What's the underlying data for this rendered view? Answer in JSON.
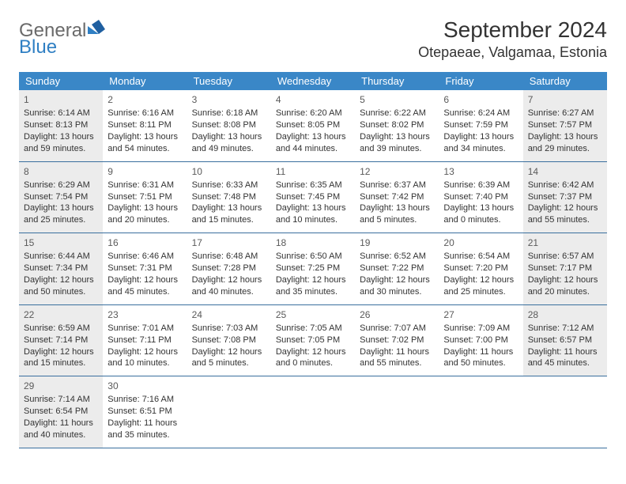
{
  "header": {
    "logo_general": "General",
    "logo_blue": "Blue",
    "title": "September 2024",
    "location": "Otepaeae, Valgamaa, Estonia"
  },
  "colors": {
    "header_bg": "#3a87c7",
    "week_border": "#3a6f9e",
    "shaded_bg": "#ececec",
    "text": "#333333",
    "logo_blue": "#2f7fc3"
  },
  "day_names": [
    "Sunday",
    "Monday",
    "Tuesday",
    "Wednesday",
    "Thursday",
    "Friday",
    "Saturday"
  ],
  "weeks": [
    [
      {
        "n": "1",
        "shaded": true,
        "sunrise": "6:14 AM",
        "sunset": "8:13 PM",
        "daylight": "13 hours and 59 minutes."
      },
      {
        "n": "2",
        "shaded": false,
        "sunrise": "6:16 AM",
        "sunset": "8:11 PM",
        "daylight": "13 hours and 54 minutes."
      },
      {
        "n": "3",
        "shaded": false,
        "sunrise": "6:18 AM",
        "sunset": "8:08 PM",
        "daylight": "13 hours and 49 minutes."
      },
      {
        "n": "4",
        "shaded": false,
        "sunrise": "6:20 AM",
        "sunset": "8:05 PM",
        "daylight": "13 hours and 44 minutes."
      },
      {
        "n": "5",
        "shaded": false,
        "sunrise": "6:22 AM",
        "sunset": "8:02 PM",
        "daylight": "13 hours and 39 minutes."
      },
      {
        "n": "6",
        "shaded": false,
        "sunrise": "6:24 AM",
        "sunset": "7:59 PM",
        "daylight": "13 hours and 34 minutes."
      },
      {
        "n": "7",
        "shaded": true,
        "sunrise": "6:27 AM",
        "sunset": "7:57 PM",
        "daylight": "13 hours and 29 minutes."
      }
    ],
    [
      {
        "n": "8",
        "shaded": true,
        "sunrise": "6:29 AM",
        "sunset": "7:54 PM",
        "daylight": "13 hours and 25 minutes."
      },
      {
        "n": "9",
        "shaded": false,
        "sunrise": "6:31 AM",
        "sunset": "7:51 PM",
        "daylight": "13 hours and 20 minutes."
      },
      {
        "n": "10",
        "shaded": false,
        "sunrise": "6:33 AM",
        "sunset": "7:48 PM",
        "daylight": "13 hours and 15 minutes."
      },
      {
        "n": "11",
        "shaded": false,
        "sunrise": "6:35 AM",
        "sunset": "7:45 PM",
        "daylight": "13 hours and 10 minutes."
      },
      {
        "n": "12",
        "shaded": false,
        "sunrise": "6:37 AM",
        "sunset": "7:42 PM",
        "daylight": "13 hours and 5 minutes."
      },
      {
        "n": "13",
        "shaded": false,
        "sunrise": "6:39 AM",
        "sunset": "7:40 PM",
        "daylight": "13 hours and 0 minutes."
      },
      {
        "n": "14",
        "shaded": true,
        "sunrise": "6:42 AM",
        "sunset": "7:37 PM",
        "daylight": "12 hours and 55 minutes."
      }
    ],
    [
      {
        "n": "15",
        "shaded": true,
        "sunrise": "6:44 AM",
        "sunset": "7:34 PM",
        "daylight": "12 hours and 50 minutes."
      },
      {
        "n": "16",
        "shaded": false,
        "sunrise": "6:46 AM",
        "sunset": "7:31 PM",
        "daylight": "12 hours and 45 minutes."
      },
      {
        "n": "17",
        "shaded": false,
        "sunrise": "6:48 AM",
        "sunset": "7:28 PM",
        "daylight": "12 hours and 40 minutes."
      },
      {
        "n": "18",
        "shaded": false,
        "sunrise": "6:50 AM",
        "sunset": "7:25 PM",
        "daylight": "12 hours and 35 minutes."
      },
      {
        "n": "19",
        "shaded": false,
        "sunrise": "6:52 AM",
        "sunset": "7:22 PM",
        "daylight": "12 hours and 30 minutes."
      },
      {
        "n": "20",
        "shaded": false,
        "sunrise": "6:54 AM",
        "sunset": "7:20 PM",
        "daylight": "12 hours and 25 minutes."
      },
      {
        "n": "21",
        "shaded": true,
        "sunrise": "6:57 AM",
        "sunset": "7:17 PM",
        "daylight": "12 hours and 20 minutes."
      }
    ],
    [
      {
        "n": "22",
        "shaded": true,
        "sunrise": "6:59 AM",
        "sunset": "7:14 PM",
        "daylight": "12 hours and 15 minutes."
      },
      {
        "n": "23",
        "shaded": false,
        "sunrise": "7:01 AM",
        "sunset": "7:11 PM",
        "daylight": "12 hours and 10 minutes."
      },
      {
        "n": "24",
        "shaded": false,
        "sunrise": "7:03 AM",
        "sunset": "7:08 PM",
        "daylight": "12 hours and 5 minutes."
      },
      {
        "n": "25",
        "shaded": false,
        "sunrise": "7:05 AM",
        "sunset": "7:05 PM",
        "daylight": "12 hours and 0 minutes."
      },
      {
        "n": "26",
        "shaded": false,
        "sunrise": "7:07 AM",
        "sunset": "7:02 PM",
        "daylight": "11 hours and 55 minutes."
      },
      {
        "n": "27",
        "shaded": false,
        "sunrise": "7:09 AM",
        "sunset": "7:00 PM",
        "daylight": "11 hours and 50 minutes."
      },
      {
        "n": "28",
        "shaded": true,
        "sunrise": "7:12 AM",
        "sunset": "6:57 PM",
        "daylight": "11 hours and 45 minutes."
      }
    ],
    [
      {
        "n": "29",
        "shaded": true,
        "sunrise": "7:14 AM",
        "sunset": "6:54 PM",
        "daylight": "11 hours and 40 minutes."
      },
      {
        "n": "30",
        "shaded": false,
        "sunrise": "7:16 AM",
        "sunset": "6:51 PM",
        "daylight": "11 hours and 35 minutes."
      },
      {
        "empty": true
      },
      {
        "empty": true
      },
      {
        "empty": true
      },
      {
        "empty": true
      },
      {
        "empty": true
      }
    ]
  ],
  "labels": {
    "sunrise_prefix": "Sunrise: ",
    "sunset_prefix": "Sunset: ",
    "daylight_prefix": "Daylight: "
  }
}
